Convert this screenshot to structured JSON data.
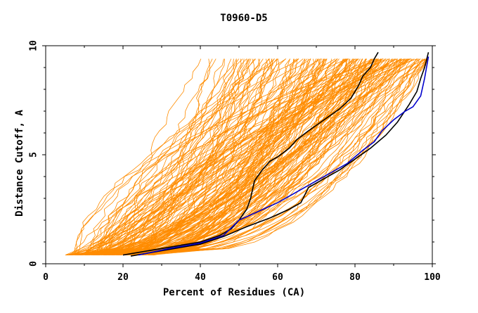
{
  "chart_data": {
    "type": "line",
    "title": "T0960-D5",
    "xlabel": "Percent of Residues (CA)",
    "ylabel": "Distance Cutoff, A",
    "xlim": [
      0,
      100
    ],
    "ylim": [
      0,
      10
    ],
    "x_ticks": [
      "0",
      "20",
      "40",
      "60",
      "80",
      "100"
    ],
    "y_ticks": [
      "0",
      "5",
      "10"
    ],
    "grid": false,
    "legend": "none",
    "colors": {
      "background_series": "#ff8c00",
      "highlight_dark": "#000000",
      "highlight_blue": "#0000cc"
    },
    "highlight_series": [
      {
        "color": "#000000",
        "x": [
          20,
          25,
          30,
          35,
          40,
          45,
          48,
          50,
          52,
          53,
          54,
          56,
          58,
          60,
          63,
          65,
          68,
          72,
          76,
          79,
          81,
          82,
          84,
          85,
          86
        ],
        "y": [
          0.4,
          0.55,
          0.7,
          0.85,
          1.0,
          1.3,
          1.6,
          2.0,
          2.5,
          3.0,
          3.8,
          4.3,
          4.7,
          4.9,
          5.3,
          5.7,
          6.1,
          6.6,
          7.1,
          7.6,
          8.2,
          8.6,
          9.0,
          9.4,
          9.7
        ]
      },
      {
        "color": "#000000",
        "x": [
          22,
          30,
          40,
          46,
          52,
          58,
          63,
          66,
          68,
          72,
          76,
          80,
          84,
          88,
          91,
          94,
          96,
          97,
          98,
          99
        ],
        "y": [
          0.35,
          0.6,
          0.9,
          1.25,
          1.7,
          2.1,
          2.5,
          2.8,
          3.5,
          3.9,
          4.3,
          4.8,
          5.3,
          5.9,
          6.5,
          7.3,
          7.9,
          8.5,
          9.0,
          9.7
        ]
      },
      {
        "color": "#0000cc",
        "x": [
          24,
          32,
          40,
          46,
          50,
          55,
          60,
          65,
          70,
          74,
          78,
          82,
          85,
          87,
          90,
          93,
          95,
          97,
          98,
          99
        ],
        "y": [
          0.4,
          0.7,
          0.95,
          1.3,
          2.0,
          2.4,
          2.8,
          3.3,
          3.8,
          4.2,
          4.6,
          5.2,
          5.6,
          6.1,
          6.6,
          7.0,
          7.2,
          7.7,
          8.5,
          9.5
        ]
      }
    ]
  }
}
